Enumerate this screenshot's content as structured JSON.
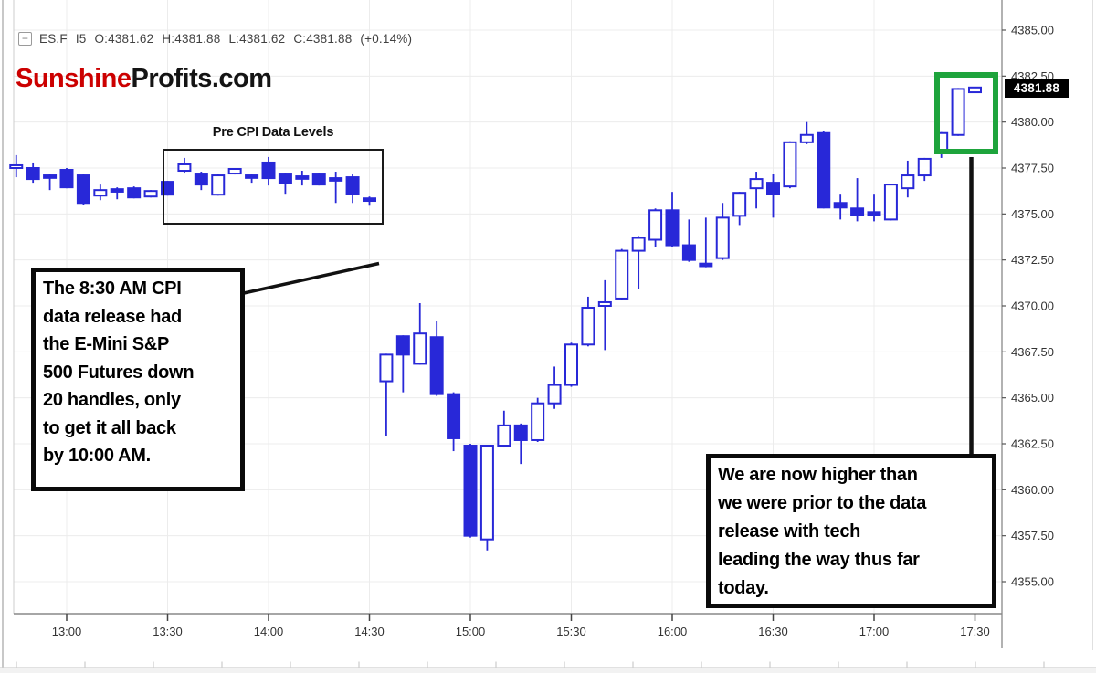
{
  "header": {
    "minimize_label": "−",
    "symbol": "ES.F",
    "interval": "I5",
    "open": "O:4381.62",
    "high": "H:4381.88",
    "low": "L:4381.62",
    "close": "C:4381.88",
    "change": "(+0.14%)"
  },
  "logo": {
    "part1": "Sunshine",
    "part2": "Profits.com"
  },
  "annotations": {
    "pre_cpi_label": "Pre CPI Data Levels",
    "left_note": "The 8:30 AM CPI\ndata release had\nthe E-Mini S&P\n500 Futures down\n20 handles, only\nto get it all back\nby 10:00 AM.",
    "right_note": "We are now higher than\nwe were prior to the data\nrelease with tech\nleading the way thus far\ntoday."
  },
  "colors": {
    "candle": "#2828D8",
    "candle_hollow_fill": "#FFFFFF",
    "green_box": "#1EA43C",
    "annotation_border": "#0A0A0A",
    "logo_red": "#CC0000",
    "logo_black": "#141414",
    "price_tag_bg": "#000000",
    "price_tag_text": "#FFFFFF",
    "grid": "#ECECEC",
    "axis_text": "#333333",
    "axis_line": "#888888"
  },
  "chart_data": {
    "type": "candlestick",
    "title": "ES.F I5 — E-Mini S&P 500 Futures, 5-minute candles",
    "y_axis": {
      "min": 4355.0,
      "max": 4385.0,
      "tick_step": 2.5,
      "ticks": [
        "4385.00",
        "4382.50",
        "4380.00",
        "4377.50",
        "4375.00",
        "4372.50",
        "4370.00",
        "4367.50",
        "4365.00",
        "4362.50",
        "4360.00",
        "4357.50",
        "4355.00"
      ],
      "last_price": "4381.88"
    },
    "x_axis": {
      "ticks": [
        "13:00",
        "13:30",
        "14:00",
        "14:30",
        "15:00",
        "15:30",
        "16:00",
        "16:30",
        "17:00",
        "17:30"
      ]
    },
    "candles": [
      {
        "t": "12:45",
        "o": 4377.5,
        "h": 4378.2,
        "l": 4377.0,
        "c": 4377.65
      },
      {
        "t": "12:50",
        "o": 4377.5,
        "h": 4377.8,
        "l": 4376.7,
        "c": 4376.9
      },
      {
        "t": "12:55",
        "o": 4377.1,
        "h": 4377.2,
        "l": 4376.3,
        "c": 4377.05
      },
      {
        "t": "13:00",
        "o": 4377.4,
        "h": 4377.5,
        "l": 4376.4,
        "c": 4376.45
      },
      {
        "t": "13:05",
        "o": 4377.1,
        "h": 4377.2,
        "l": 4375.5,
        "c": 4375.6
      },
      {
        "t": "13:10",
        "o": 4376.0,
        "h": 4376.6,
        "l": 4375.75,
        "c": 4376.3
      },
      {
        "t": "13:15",
        "o": 4376.35,
        "h": 4376.45,
        "l": 4375.8,
        "c": 4376.3
      },
      {
        "t": "13:20",
        "o": 4376.4,
        "h": 4376.5,
        "l": 4375.85,
        "c": 4375.9
      },
      {
        "t": "13:25",
        "o": 4375.95,
        "h": 4376.3,
        "l": 4375.9,
        "c": 4376.25
      },
      {
        "t": "13:30",
        "o": 4376.75,
        "h": 4376.8,
        "l": 4376.0,
        "c": 4376.05
      },
      {
        "t": "13:35",
        "o": 4377.35,
        "h": 4378.05,
        "l": 4377.25,
        "c": 4377.7
      },
      {
        "t": "13:40",
        "o": 4377.2,
        "h": 4377.3,
        "l": 4376.3,
        "c": 4376.6
      },
      {
        "t": "13:45",
        "o": 4376.05,
        "h": 4377.15,
        "l": 4376.0,
        "c": 4377.1
      },
      {
        "t": "13:50",
        "o": 4377.2,
        "h": 4377.5,
        "l": 4377.15,
        "c": 4377.45
      },
      {
        "t": "13:55",
        "o": 4377.1,
        "h": 4377.15,
        "l": 4376.7,
        "c": 4377.05
      },
      {
        "t": "14:00",
        "o": 4377.8,
        "h": 4378.1,
        "l": 4376.55,
        "c": 4376.95
      },
      {
        "t": "14:05",
        "o": 4377.2,
        "h": 4377.25,
        "l": 4376.1,
        "c": 4376.7
      },
      {
        "t": "14:10",
        "o": 4377.05,
        "h": 4377.35,
        "l": 4376.55,
        "c": 4377.0
      },
      {
        "t": "14:15",
        "o": 4377.2,
        "h": 4377.25,
        "l": 4376.55,
        "c": 4376.6
      },
      {
        "t": "14:20",
        "o": 4376.95,
        "h": 4377.3,
        "l": 4375.6,
        "c": 4376.9
      },
      {
        "t": "14:25",
        "o": 4377.0,
        "h": 4377.2,
        "l": 4375.6,
        "c": 4376.1
      },
      {
        "t": "14:30",
        "o": 4375.85,
        "h": 4375.95,
        "l": 4375.45,
        "c": 4375.75
      },
      {
        "t": "14:35",
        "o": 4365.9,
        "h": 4367.4,
        "l": 4362.9,
        "c": 4367.35
      },
      {
        "t": "14:40",
        "o": 4368.35,
        "h": 4368.4,
        "l": 4365.3,
        "c": 4367.35
      },
      {
        "t": "14:45",
        "o": 4366.85,
        "h": 4370.15,
        "l": 4366.8,
        "c": 4368.5
      },
      {
        "t": "14:50",
        "o": 4368.3,
        "h": 4369.2,
        "l": 4365.1,
        "c": 4365.2
      },
      {
        "t": "14:55",
        "o": 4365.2,
        "h": 4365.3,
        "l": 4362.1,
        "c": 4362.8
      },
      {
        "t": "15:00",
        "o": 4362.4,
        "h": 4362.5,
        "l": 4357.4,
        "c": 4357.5
      },
      {
        "t": "15:05",
        "o": 4357.3,
        "h": 4362.4,
        "l": 4356.7,
        "c": 4362.4
      },
      {
        "t": "15:10",
        "o": 4362.4,
        "h": 4364.3,
        "l": 4362.3,
        "c": 4363.5
      },
      {
        "t": "15:15",
        "o": 4363.5,
        "h": 4363.6,
        "l": 4361.4,
        "c": 4362.7
      },
      {
        "t": "15:20",
        "o": 4362.7,
        "h": 4365.0,
        "l": 4362.6,
        "c": 4364.7
      },
      {
        "t": "15:25",
        "o": 4364.7,
        "h": 4366.7,
        "l": 4364.4,
        "c": 4365.7
      },
      {
        "t": "15:30",
        "o": 4365.7,
        "h": 4368.0,
        "l": 4365.6,
        "c": 4367.9
      },
      {
        "t": "15:35",
        "o": 4367.9,
        "h": 4370.5,
        "l": 4367.8,
        "c": 4369.9
      },
      {
        "t": "15:40",
        "o": 4370.0,
        "h": 4371.4,
        "l": 4367.6,
        "c": 4370.2
      },
      {
        "t": "15:45",
        "o": 4370.4,
        "h": 4373.1,
        "l": 4370.3,
        "c": 4373.0
      },
      {
        "t": "15:50",
        "o": 4373.0,
        "h": 4373.8,
        "l": 4370.9,
        "c": 4373.7
      },
      {
        "t": "15:55",
        "o": 4373.6,
        "h": 4375.3,
        "l": 4373.2,
        "c": 4375.2
      },
      {
        "t": "16:00",
        "o": 4375.2,
        "h": 4376.2,
        "l": 4373.2,
        "c": 4373.3
      },
      {
        "t": "16:05",
        "o": 4373.3,
        "h": 4374.7,
        "l": 4372.4,
        "c": 4372.5
      },
      {
        "t": "16:10",
        "o": 4372.3,
        "h": 4374.8,
        "l": 4372.1,
        "c": 4372.2
      },
      {
        "t": "16:15",
        "o": 4372.6,
        "h": 4375.6,
        "l": 4372.5,
        "c": 4374.8
      },
      {
        "t": "16:20",
        "o": 4374.9,
        "h": 4376.2,
        "l": 4374.4,
        "c": 4376.15
      },
      {
        "t": "16:25",
        "o": 4376.4,
        "h": 4377.3,
        "l": 4375.3,
        "c": 4376.9
      },
      {
        "t": "16:30",
        "o": 4376.7,
        "h": 4377.2,
        "l": 4374.8,
        "c": 4376.1
      },
      {
        "t": "16:35",
        "o": 4376.5,
        "h": 4378.95,
        "l": 4376.4,
        "c": 4378.9
      },
      {
        "t": "16:40",
        "o": 4378.9,
        "h": 4380.0,
        "l": 4378.8,
        "c": 4379.3
      },
      {
        "t": "16:45",
        "o": 4379.4,
        "h": 4379.5,
        "l": 4375.3,
        "c": 4375.35
      },
      {
        "t": "16:50",
        "o": 4375.6,
        "h": 4376.1,
        "l": 4374.7,
        "c": 4375.35
      },
      {
        "t": "16:55",
        "o": 4375.3,
        "h": 4376.95,
        "l": 4374.6,
        "c": 4374.95
      },
      {
        "t": "17:00",
        "o": 4375.1,
        "h": 4376.1,
        "l": 4374.6,
        "c": 4375.0
      },
      {
        "t": "17:05",
        "o": 4374.7,
        "h": 4376.65,
        "l": 4374.65,
        "c": 4376.6
      },
      {
        "t": "17:10",
        "o": 4376.4,
        "h": 4377.9,
        "l": 4375.9,
        "c": 4377.1
      },
      {
        "t": "17:15",
        "o": 4377.1,
        "h": 4378.05,
        "l": 4376.8,
        "c": 4378.0
      },
      {
        "t": "17:20",
        "o": 4378.3,
        "h": 4379.45,
        "l": 4378.05,
        "c": 4379.4
      },
      {
        "t": "17:25",
        "o": 4379.3,
        "h": 4381.85,
        "l": 4379.25,
        "c": 4381.8
      },
      {
        "t": "17:30",
        "o": 4381.62,
        "h": 4381.88,
        "l": 4381.62,
        "c": 4381.88
      }
    ]
  }
}
